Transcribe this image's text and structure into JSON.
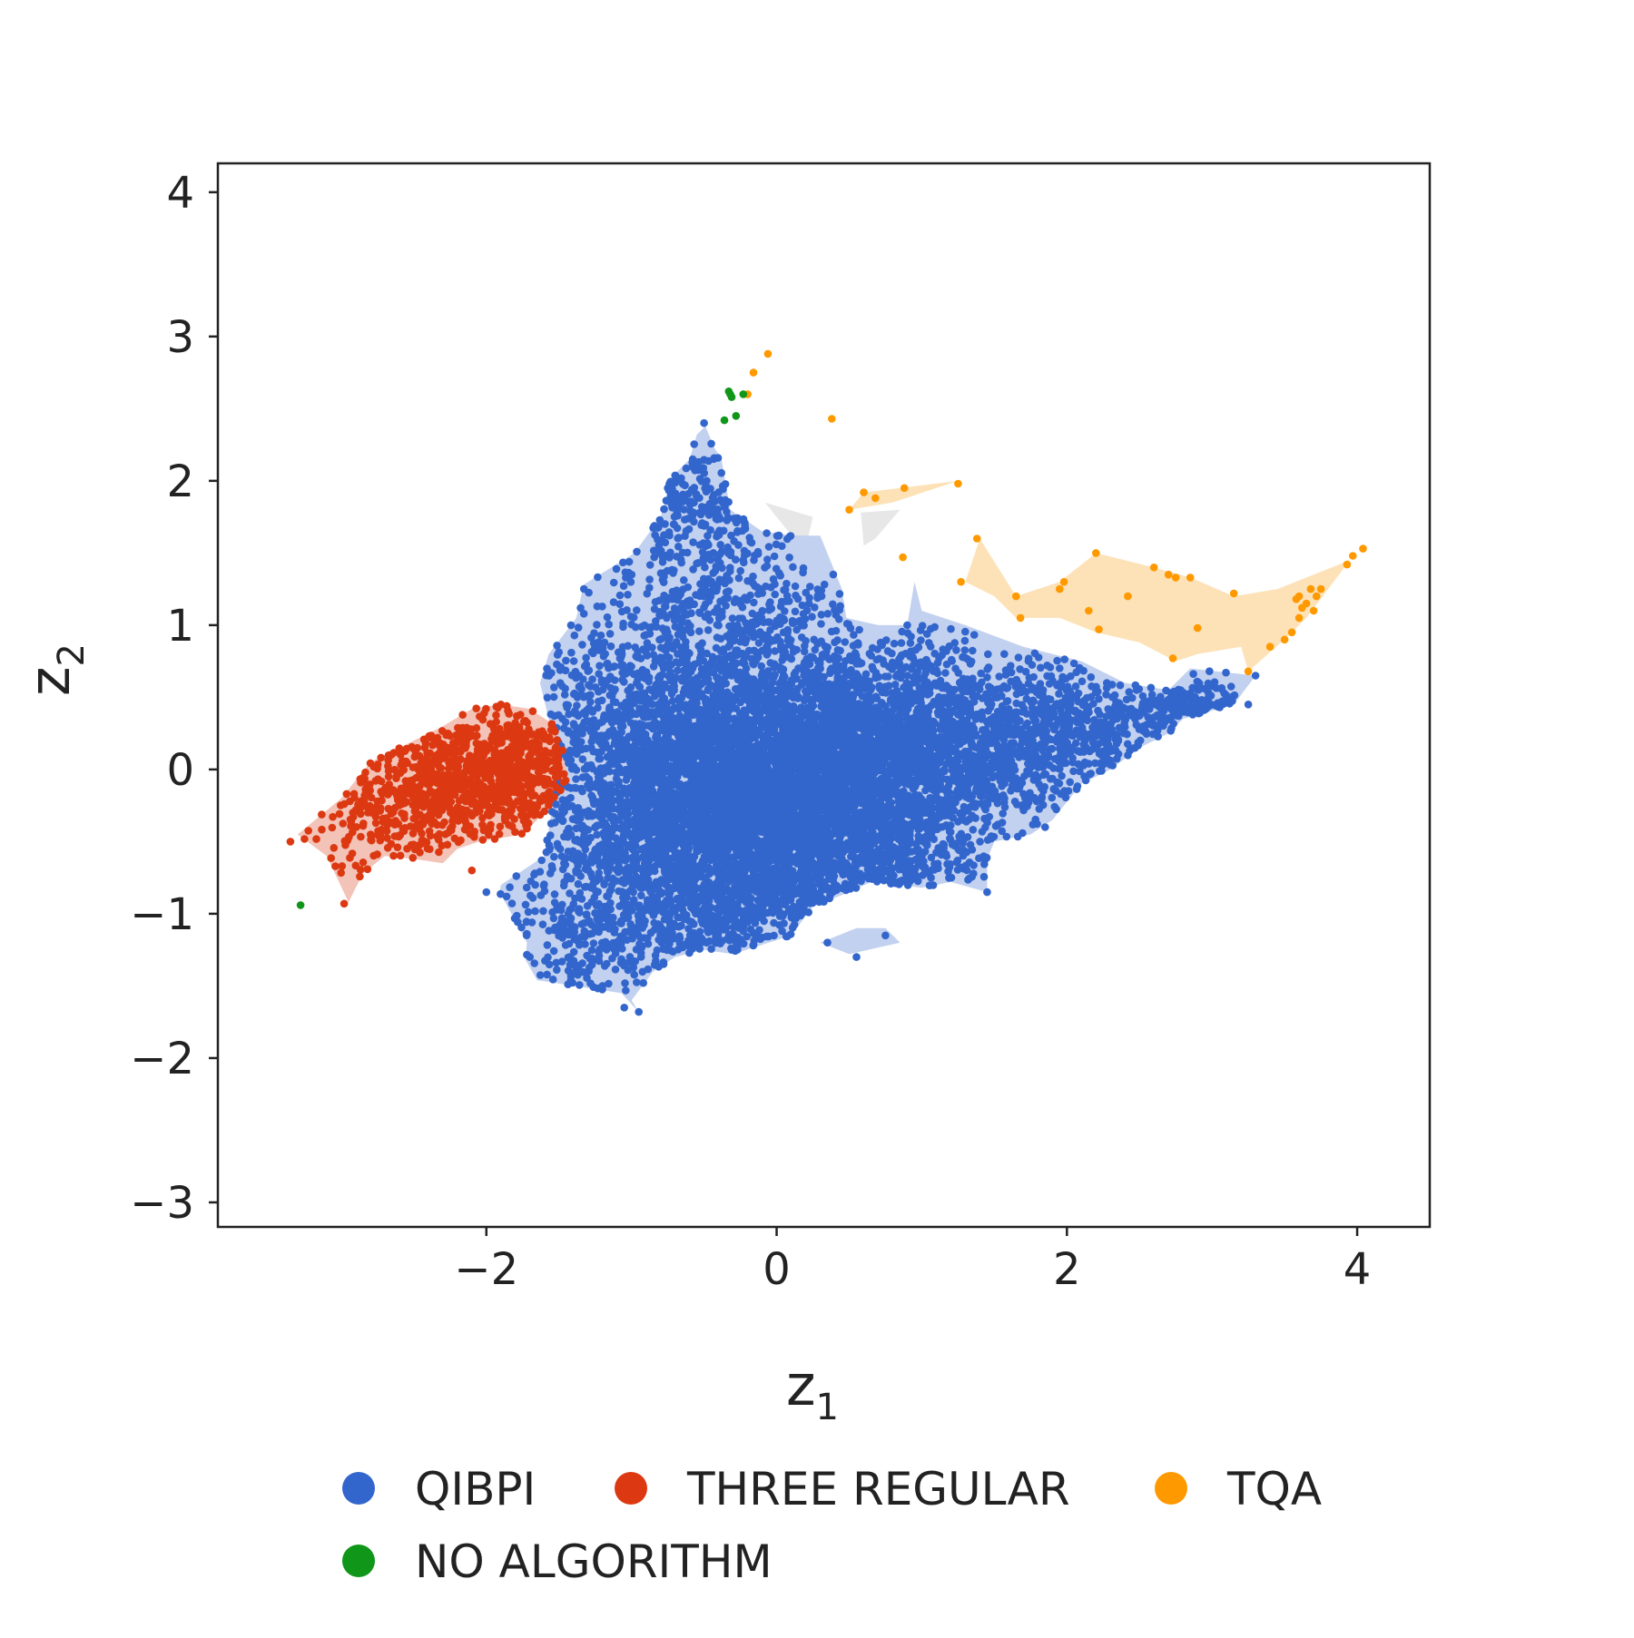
{
  "chart_data": {
    "type": "scatter",
    "xlabel": "z",
    "xlabel_subscript": "1",
    "ylabel": "z",
    "ylabel_subscript": "2",
    "xlim": [
      -3.85,
      4.5
    ],
    "ylim": [
      -3.17,
      4.2
    ],
    "x_ticks": [
      -2,
      0,
      2,
      4
    ],
    "y_ticks": [
      4,
      3,
      2,
      1,
      0,
      -1,
      -2,
      -3
    ],
    "x_tick_labels": [
      "−2",
      "0",
      "2",
      "4"
    ],
    "y_tick_labels": [
      "4",
      "3",
      "2",
      "1",
      "0",
      "−1",
      "−2",
      "−3"
    ],
    "grid": false,
    "legend_position": "bottom",
    "series": [
      {
        "name": "QIBPI",
        "color": "#3366cc",
        "region_color": "#bfcfee",
        "region": [
          [
            -0.95,
            -1.68
          ],
          [
            -1.07,
            -1.55
          ],
          [
            -1.65,
            -1.46
          ],
          [
            -1.73,
            -1.32
          ],
          [
            -1.72,
            -1.2
          ],
          [
            -1.8,
            -1.05
          ],
          [
            -1.91,
            -0.85
          ],
          [
            -1.9,
            -0.8
          ],
          [
            -1.6,
            -0.6
          ],
          [
            -1.5,
            0.02
          ],
          [
            -1.57,
            0.35
          ],
          [
            -1.63,
            0.6
          ],
          [
            -1.57,
            0.8
          ],
          [
            -1.38,
            1.05
          ],
          [
            -1.33,
            1.28
          ],
          [
            -0.98,
            1.5
          ],
          [
            -0.8,
            1.75
          ],
          [
            -0.75,
            1.9
          ],
          [
            -0.75,
            2.0
          ],
          [
            -0.6,
            2.15
          ],
          [
            -0.55,
            2.32
          ],
          [
            -0.5,
            2.37
          ],
          [
            -0.5,
            2.4
          ],
          [
            -0.43,
            2.23
          ],
          [
            -0.38,
            2.15
          ],
          [
            -0.32,
            1.8
          ],
          [
            -0.1,
            1.65
          ],
          [
            0.12,
            1.62
          ],
          [
            0.3,
            1.62
          ],
          [
            0.45,
            1.25
          ],
          [
            0.48,
            1.05
          ],
          [
            0.7,
            1.0
          ],
          [
            0.9,
            1.0
          ],
          [
            0.95,
            1.3
          ],
          [
            1.0,
            1.1
          ],
          [
            1.3,
            1.0
          ],
          [
            1.7,
            0.85
          ],
          [
            2.1,
            0.75
          ],
          [
            2.4,
            0.6
          ],
          [
            2.7,
            0.55
          ],
          [
            2.85,
            0.7
          ],
          [
            3.3,
            0.65
          ],
          [
            3.15,
            0.45
          ],
          [
            2.8,
            0.35
          ],
          [
            2.7,
            0.25
          ],
          [
            2.5,
            0.15
          ],
          [
            2.3,
            -0.0
          ],
          [
            2.1,
            -0.1
          ],
          [
            1.9,
            -0.35
          ],
          [
            1.75,
            -0.45
          ],
          [
            1.5,
            -0.5
          ],
          [
            1.45,
            -0.62
          ],
          [
            1.45,
            -0.85
          ],
          [
            1.2,
            -0.78
          ],
          [
            1.0,
            -0.82
          ],
          [
            0.85,
            -0.8
          ],
          [
            0.65,
            -0.78
          ],
          [
            0.5,
            -0.85
          ],
          [
            0.25,
            -0.95
          ],
          [
            0.1,
            -1.15
          ],
          [
            -0.3,
            -1.28
          ],
          [
            -0.5,
            -1.25
          ],
          [
            -0.7,
            -1.3
          ],
          [
            -0.85,
            -1.4
          ],
          [
            -1.0,
            -1.6
          ]
        ],
        "sub_regions": [
          [
            [
              0.3,
              -1.2
            ],
            [
              0.55,
              -1.1
            ],
            [
              0.75,
              -1.1
            ],
            [
              0.85,
              -1.2
            ],
            [
              0.5,
              -1.28
            ]
          ]
        ],
        "points": [
          [
            -0.5,
            -0.5,
            2800,
            0.65,
            0.6
          ],
          [
            0.0,
            -0.1,
            2600,
            0.7,
            0.5
          ],
          [
            0.5,
            0.05,
            1500,
            0.6,
            0.4
          ],
          [
            1.3,
            0.2,
            900,
            0.6,
            0.3
          ],
          [
            2.3,
            0.3,
            350,
            0.45,
            0.2
          ],
          [
            2.9,
            0.45,
            120,
            0.15,
            0.08
          ],
          [
            -0.5,
            1.7,
            200,
            0.25,
            0.3
          ],
          [
            -0.3,
            1.0,
            400,
            0.55,
            0.35
          ],
          [
            -1.1,
            0.3,
            300,
            0.3,
            0.4
          ],
          [
            -1.3,
            -1.15,
            90,
            0.25,
            0.18
          ],
          [
            -0.7,
            2.0,
            40,
            0.12,
            0.2
          ],
          [
            0.6,
            -0.6,
            300,
            0.4,
            0.2
          ]
        ],
        "outlier_points": [
          [
            -0.5,
            2.4
          ],
          [
            -0.95,
            -1.68
          ],
          [
            -1.05,
            -1.65
          ],
          [
            -1.2,
            -1.5
          ],
          [
            -1.7,
            -1.3
          ],
          [
            -2.0,
            -0.85
          ],
          [
            0.55,
            -1.3
          ],
          [
            0.75,
            -1.15
          ],
          [
            0.35,
            -1.2
          ],
          [
            1.45,
            -0.85
          ],
          [
            1.85,
            -0.4
          ],
          [
            3.3,
            0.65
          ],
          [
            3.25,
            0.45
          ],
          [
            -0.75,
            1.95
          ],
          [
            0.9,
            1.0
          ]
        ]
      },
      {
        "name": "THREE REGULAR",
        "color": "#dc3912",
        "region_color": "#f2c0b4",
        "region": [
          [
            -2.95,
            -0.92
          ],
          [
            -3.1,
            -0.6
          ],
          [
            -3.3,
            -0.45
          ],
          [
            -3.0,
            -0.2
          ],
          [
            -2.8,
            0.05
          ],
          [
            -2.5,
            0.2
          ],
          [
            -2.3,
            0.3
          ],
          [
            -2.1,
            0.42
          ],
          [
            -1.9,
            0.45
          ],
          [
            -1.7,
            0.42
          ],
          [
            -1.55,
            0.32
          ],
          [
            -1.45,
            0.1
          ],
          [
            -1.45,
            -0.1
          ],
          [
            -1.55,
            -0.25
          ],
          [
            -1.75,
            -0.45
          ],
          [
            -2.05,
            -0.5
          ],
          [
            -2.2,
            -0.55
          ],
          [
            -2.3,
            -0.65
          ],
          [
            -2.5,
            -0.62
          ],
          [
            -2.7,
            -0.6
          ],
          [
            -2.85,
            -0.72
          ]
        ],
        "points": [
          [
            -2.1,
            -0.05,
            700,
            0.42,
            0.25
          ],
          [
            -1.75,
            0.05,
            200,
            0.18,
            0.2
          ],
          [
            -2.6,
            -0.3,
            150,
            0.3,
            0.2
          ],
          [
            -2.9,
            -0.55,
            35,
            0.15,
            0.15
          ]
        ],
        "outlier_points": [
          [
            -3.35,
            -0.5
          ],
          [
            -2.98,
            -0.93
          ],
          [
            -2.1,
            -0.7
          ],
          [
            -1.9,
            0.45
          ]
        ]
      },
      {
        "name": "TQA",
        "color": "#ff9900",
        "region_color": "#fde0b4",
        "regions": [
          [
            [
              1.3,
              1.3
            ],
            [
              1.4,
              1.6
            ],
            [
              1.65,
              1.2
            ],
            [
              1.95,
              1.3
            ],
            [
              2.2,
              1.5
            ],
            [
              2.6,
              1.4
            ],
            [
              2.85,
              1.33
            ],
            [
              3.15,
              1.2
            ],
            [
              3.45,
              1.25
            ],
            [
              3.95,
              1.45
            ],
            [
              3.65,
              1.05
            ],
            [
              3.5,
              0.9
            ],
            [
              3.25,
              0.68
            ],
            [
              3.2,
              0.85
            ],
            [
              2.9,
              0.8
            ],
            [
              2.75,
              0.75
            ],
            [
              2.5,
              0.88
            ],
            [
              2.2,
              0.95
            ],
            [
              1.95,
              1.05
            ],
            [
              1.65,
              1.05
            ],
            [
              1.5,
              1.2
            ]
          ],
          [
            [
              0.5,
              1.8
            ],
            [
              0.6,
              1.92
            ],
            [
              0.85,
              1.95
            ],
            [
              1.25,
              2.0
            ],
            [
              0.8,
              1.85
            ]
          ]
        ],
        "points_list": [
          [
            -0.06,
            2.88
          ],
          [
            -0.16,
            2.75
          ],
          [
            -0.2,
            2.6
          ],
          [
            0.38,
            2.43
          ],
          [
            0.5,
            1.8
          ],
          [
            0.6,
            1.92
          ],
          [
            0.68,
            1.88
          ],
          [
            0.88,
            1.95
          ],
          [
            1.25,
            1.98
          ],
          [
            0.87,
            1.47
          ],
          [
            1.38,
            1.6
          ],
          [
            1.27,
            1.3
          ],
          [
            1.65,
            1.2
          ],
          [
            1.68,
            1.05
          ],
          [
            1.95,
            1.25
          ],
          [
            1.98,
            1.3
          ],
          [
            2.2,
            1.5
          ],
          [
            2.15,
            1.1
          ],
          [
            2.22,
            0.97
          ],
          [
            2.42,
            1.2
          ],
          [
            2.6,
            1.4
          ],
          [
            2.7,
            1.35
          ],
          [
            2.75,
            1.33
          ],
          [
            2.85,
            1.33
          ],
          [
            2.9,
            0.98
          ],
          [
            2.73,
            0.77
          ],
          [
            3.15,
            1.22
          ],
          [
            3.25,
            0.68
          ],
          [
            3.4,
            0.85
          ],
          [
            3.5,
            0.9
          ],
          [
            3.55,
            0.95
          ],
          [
            3.6,
            1.05
          ],
          [
            3.62,
            1.12
          ],
          [
            3.65,
            1.15
          ],
          [
            3.68,
            1.25
          ],
          [
            3.72,
            1.2
          ],
          [
            3.75,
            1.25
          ],
          [
            3.6,
            1.2
          ],
          [
            3.7,
            1.1
          ],
          [
            3.93,
            1.42
          ],
          [
            3.97,
            1.48
          ],
          [
            4.04,
            1.53
          ],
          [
            3.58,
            1.18
          ]
        ]
      },
      {
        "name": "NO ALGORITHM",
        "color": "#109618",
        "points_list": [
          [
            -0.33,
            2.62
          ],
          [
            -0.31,
            2.58
          ],
          [
            -0.32,
            2.6
          ],
          [
            -0.23,
            2.6
          ],
          [
            -0.28,
            2.45
          ],
          [
            -0.36,
            2.42
          ],
          [
            -3.28,
            -0.94
          ]
        ]
      }
    ],
    "unlabeled_regions_color": "#e6e6e6",
    "unlabeled_regions": [
      [
        [
          -0.08,
          1.85
        ],
        [
          0.25,
          1.75
        ],
        [
          0.22,
          1.62
        ],
        [
          0.12,
          1.6
        ]
      ],
      [
        [
          0.58,
          1.78
        ],
        [
          0.85,
          1.8
        ],
        [
          0.68,
          1.6
        ],
        [
          0.6,
          1.55
        ]
      ]
    ]
  }
}
